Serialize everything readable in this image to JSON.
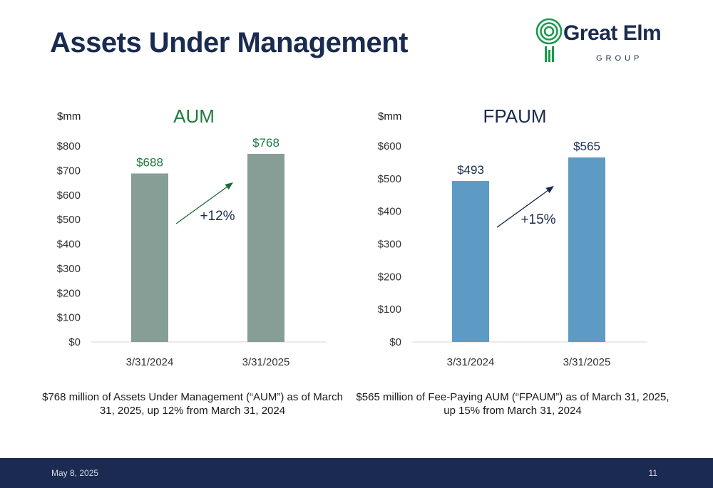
{
  "slide": {
    "title": "Assets Under Management",
    "logo": {
      "name": "Great Elm",
      "sub": "GROUP",
      "color": "#1a9a4a"
    },
    "footer": {
      "date": "May 8, 2025",
      "page": "11"
    }
  },
  "chart_data": [
    {
      "type": "bar",
      "title": "AUM",
      "unit_label": "$mm",
      "categories": [
        "3/31/2024",
        "3/31/2025"
      ],
      "values": [
        688,
        768
      ],
      "data_labels": [
        "$688",
        "$768"
      ],
      "ylim": [
        0,
        800
      ],
      "yticks": [
        0,
        100,
        200,
        300,
        400,
        500,
        600,
        700,
        800
      ],
      "ytick_labels": [
        "$0",
        "$100",
        "$200",
        "$300",
        "$400",
        "$500",
        "$600",
        "$700",
        "$800"
      ],
      "bar_color": "#879e96",
      "title_color": "#1f7a3c",
      "label_color": "#1f7a3c",
      "arrow_color": "#1f6b33",
      "growth_label": "+12%",
      "grid": false,
      "caption": "$768 million of Assets Under Management (“AUM”) as of March 31, 2025, up 12% from March 31, 2024"
    },
    {
      "type": "bar",
      "title": "FPAUM",
      "unit_label": "$mm",
      "categories": [
        "3/31/2024",
        "3/31/2025"
      ],
      "values": [
        493,
        565
      ],
      "data_labels": [
        "$493",
        "$565"
      ],
      "ylim": [
        0,
        600
      ],
      "yticks": [
        0,
        100,
        200,
        300,
        400,
        500,
        600
      ],
      "ytick_labels": [
        "$0",
        "$100",
        "$200",
        "$300",
        "$400",
        "$500",
        "$600"
      ],
      "bar_color": "#5e9bc4",
      "title_color": "#1a2b50",
      "label_color": "#1a2b50",
      "arrow_color": "#1a2b50",
      "growth_label": "+15%",
      "grid": false,
      "caption": "$565 million of Fee-Paying AUM (“FPAUM”) as of March 31, 2025, up 15% from March 31, 2024"
    }
  ]
}
